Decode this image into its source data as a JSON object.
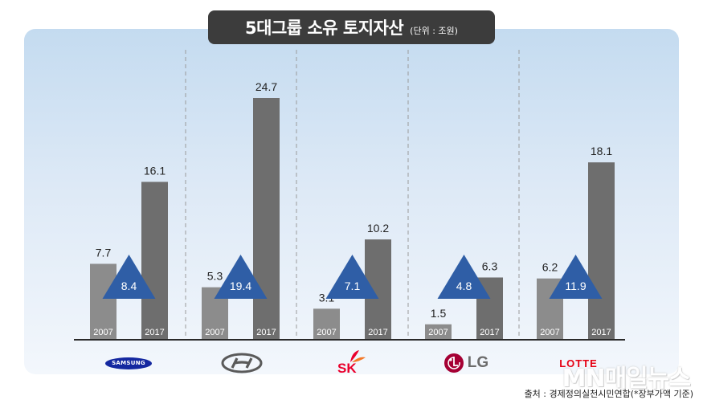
{
  "header": {
    "title": "5대그룹 소유 토지자산",
    "unit": "(단위 : 조원)"
  },
  "chart_data": {
    "type": "bar",
    "title": "5대그룹 소유 토지자산",
    "subtitle": "(단위 : 조원)",
    "groups": [
      "SAMSUNG",
      "Hyundai",
      "SK",
      "LG",
      "LOTTE"
    ],
    "series": [
      {
        "name": "2007",
        "values": [
          7.7,
          5.3,
          3.1,
          1.5,
          6.2
        ],
        "color": "#8c8c8c"
      },
      {
        "name": "2017",
        "values": [
          16.1,
          24.7,
          10.2,
          6.3,
          18.1
        ],
        "color": "#6e6e6e"
      }
    ],
    "bar_labels": [
      "2007",
      "2017"
    ],
    "multiplier": [
      8.4,
      19.4,
      7.1,
      4.8,
      11.9
    ],
    "multiplier_color": "#2f5ea6",
    "ylim": [
      0,
      27
    ],
    "grid": false
  },
  "logos": {
    "samsung": "SAMSUNG",
    "sk": "SK",
    "lg": "LG",
    "lotte": "LOTTE"
  },
  "footer": {
    "source": "출처 : 경제정의실천시민연합(*장부가액 기준)",
    "watermark": "MN매일뉴스"
  }
}
